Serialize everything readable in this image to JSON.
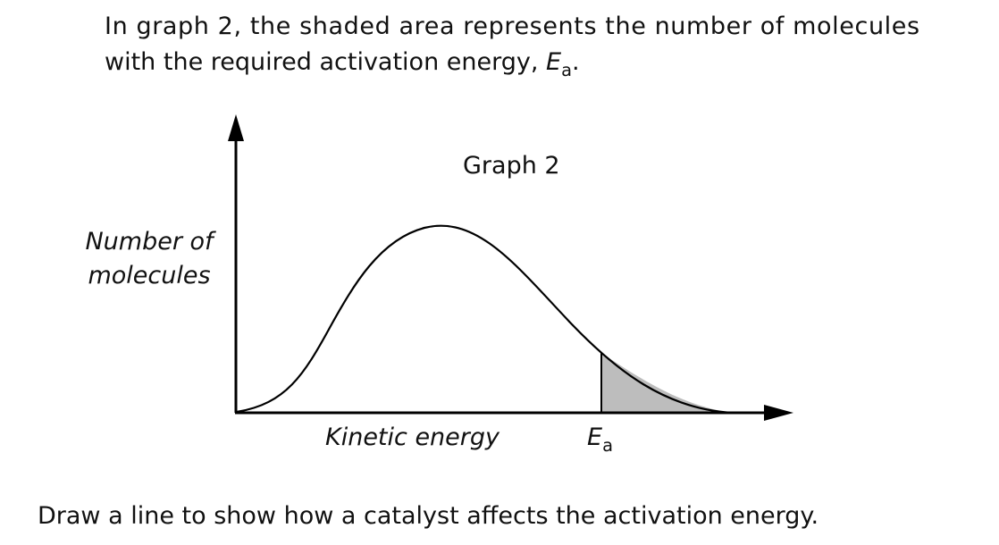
{
  "intro": {
    "line1": "In graph 2, the shaded area represents the number of molecules",
    "line2_prefix": "with the required activation energy, ",
    "ea_letter": "E",
    "ea_subscript": "a",
    "line2_suffix": "."
  },
  "graph": {
    "title": "Graph 2",
    "ylabel_line1": "Number of",
    "ylabel_line2": "molecules",
    "xlabel": "Kinetic energy",
    "marker_letter": "E",
    "marker_subscript": "a",
    "curve_color": "#000000",
    "shade_color": "#bdbdbd"
  },
  "question": "Draw a line to show how a catalyst affects the activation energy."
}
